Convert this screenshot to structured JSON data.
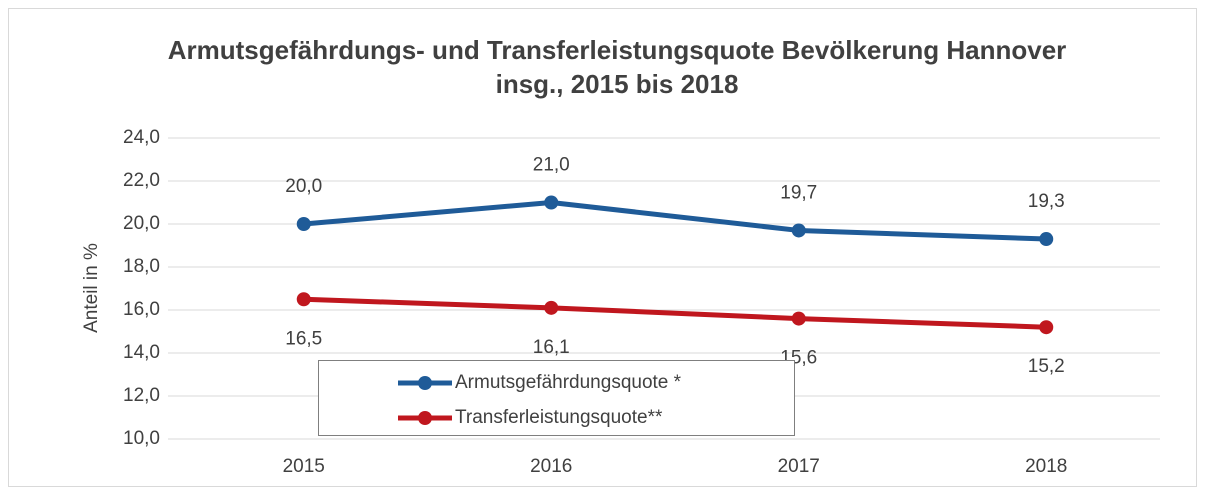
{
  "chart_data": {
    "type": "line",
    "title": "Armutsgefährdungs- und Transferleistungsquote Bevölkerung Hannover insg., 2015 bis 2018",
    "y_label": "Anteil in %",
    "categories": [
      "2015",
      "2016",
      "2017",
      "2018"
    ],
    "series": [
      {
        "name": "Armutsgefährdungsquote *",
        "color": "#1f5b98",
        "values": [
          20.0,
          21.0,
          19.7,
          19.3
        ],
        "value_labels": [
          "20,0",
          "21,0",
          "19,7",
          "19,3"
        ]
      },
      {
        "name": "Transferleistungsquote**",
        "color": "#c0171e",
        "values": [
          16.5,
          16.1,
          15.6,
          15.2
        ],
        "value_labels": [
          "16,5",
          "16,1",
          "15,6",
          "15,2"
        ]
      }
    ],
    "ylim": [
      10,
      24
    ],
    "yticks": [
      {
        "value": 10,
        "label": "10,0"
      },
      {
        "value": 12,
        "label": "12,0"
      },
      {
        "value": 14,
        "label": "14,0"
      },
      {
        "value": 16,
        "label": "16,0"
      },
      {
        "value": 18,
        "label": "18,0"
      },
      {
        "value": 20,
        "label": "20,0"
      },
      {
        "value": 22,
        "label": "22,0"
      },
      {
        "value": 24,
        "label": "24,0"
      }
    ],
    "grid": true
  }
}
